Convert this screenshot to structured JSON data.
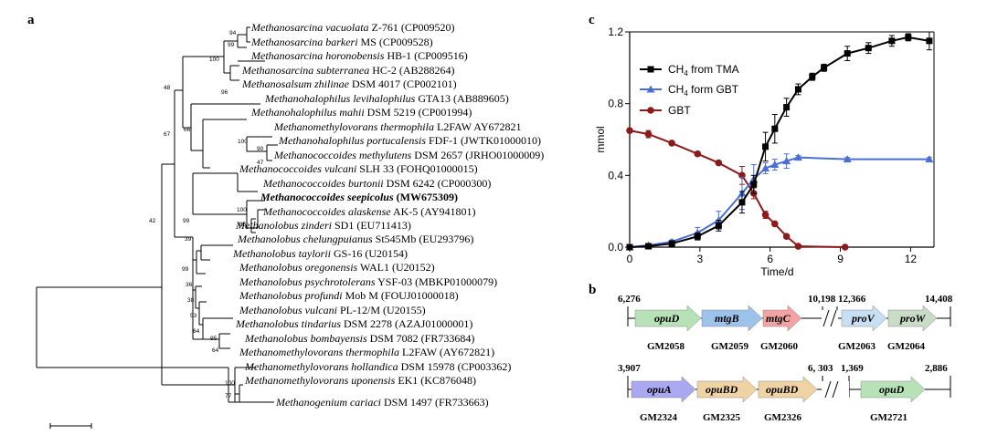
{
  "panels": {
    "a": {
      "label": "a",
      "taxa": [
        {
          "genus": "Methanosarcina",
          "species": "vacuolata",
          "strain": "Z-761 (CP009520)"
        },
        {
          "genus": "Methanosarcina",
          "species": "barkeri",
          "strain": "MS (CP009528)"
        },
        {
          "genus": "Methanosarcina",
          "species": "horonobensis",
          "strain": "HB-1 (CP009516)"
        },
        {
          "genus": "Methanosarcina",
          "species": "subterranea",
          "strain": "HC-2 (AB288264)"
        },
        {
          "genus": "Methanosalsum",
          "species": "zhilinae",
          "strain": "DSM 4017 (CP002101)"
        },
        {
          "genus": "Methanohalophilus",
          "species": "levihalophilus",
          "strain": "GTA13 (AB889605)"
        },
        {
          "genus": "Methanohalophilus",
          "species": "mahii",
          "strain": "DSM 5219 (CP001994)"
        },
        {
          "genus": "Methanomethylovorans",
          "species": "thermophila",
          "strain": "L2FAW AY672821"
        },
        {
          "genus": "Methanohalophilus",
          "species": "portucalensis",
          "strain": "FDF-1 (JWTK01000010)"
        },
        {
          "genus": "Methanococcoides",
          "species": "methylutens",
          "strain": "DSM 2657 (JRHO01000009)"
        },
        {
          "genus": "Methanococcoides",
          "species": "vulcani",
          "strain": "SLH 33 (FOHQ01000015)"
        },
        {
          "genus": "Methanococcoides",
          "species": "burtonii",
          "strain": "DSM 6242 (CP000300)"
        },
        {
          "genus": "Methanococcoides",
          "species": "seepicolus",
          "strain": "(MW675309)",
          "bold": true
        },
        {
          "genus": "Methanococcoides",
          "species": "alaskense",
          "strain": "AK-5 (AY941801)"
        },
        {
          "genus": "Methanolobus",
          "species": "zinderi",
          "strain": "SD1 (EU711413)"
        },
        {
          "genus": "Methanolobus",
          "species": "chelungpuianus",
          "strain": "St545Mb (EU293796)"
        },
        {
          "genus": "Methanolobus",
          "species": "taylorii",
          "strain": "GS-16 (U20154)"
        },
        {
          "genus": "Methanolobus",
          "species": "oregonensis",
          "strain": "WAL1 (U20152)"
        },
        {
          "genus": "Methanolobus",
          "species": "psychrotolerans",
          "strain": "YSF-03 (MBKP01000079)"
        },
        {
          "genus": "Methanolobus",
          "species": "profundi",
          "strain": "Mob M (FOUJ01000018)"
        },
        {
          "genus": "Methanolobus",
          "species": "vulcani",
          "strain": "PL-12/M (U20155)"
        },
        {
          "genus": "Methanolobus",
          "species": "tindarius",
          "strain": "DSM 2278 (AZAJ01000001)"
        },
        {
          "genus": "Methanolobus",
          "species": "bombayensis",
          "strain": "DSM 7082 (FR733684)"
        },
        {
          "genus": "Methanomethylovorans",
          "species": "thermophila",
          "strain": "L2FAW (AY672821)"
        },
        {
          "genus": "Methanomethylovorans",
          "species": "hollandica",
          "strain": "DSM 15978 (CP003362)"
        },
        {
          "genus": "Methanomethylovorans",
          "species": "uponensis",
          "strain": "EK1 (KC876048)"
        },
        {
          "genus": "Methanogenium",
          "species": "cariaci",
          "strain": "DSM 1497 (FR733663)"
        }
      ],
      "bootstrap": [
        "94",
        "99",
        "100",
        "96",
        "48",
        "66",
        "100",
        "90",
        "47",
        "67",
        "99",
        "100",
        "86",
        "42",
        "39",
        "99",
        "36",
        "38",
        "53",
        "64",
        "95",
        "64",
        "100",
        "77"
      ]
    },
    "b": {
      "label": "b",
      "row1": {
        "coords": [
          "6,276",
          "10,198",
          "12,366",
          "14,408"
        ],
        "genes": [
          {
            "name": "opuD",
            "id": "GM2058",
            "color": "#b7e2b7"
          },
          {
            "name": "mtgB",
            "id": "GM2059",
            "color": "#9ec3ea"
          },
          {
            "name": "mtgC",
            "id": "GM2060",
            "color": "#f4a3a3"
          },
          {
            "name": "proV",
            "id": "GM2063",
            "color": "#c7def3"
          },
          {
            "name": "proW",
            "id": "GM2064",
            "color": "#c9dcc6"
          }
        ]
      },
      "row2": {
        "coords": [
          "3,907",
          "6, 303",
          "1,369",
          "2,886"
        ],
        "genes": [
          {
            "name": "opuA",
            "id": "GM2324",
            "color": "#a9a8f0"
          },
          {
            "name": "opuBD",
            "id": "GM2325",
            "color": "#f0d3a4"
          },
          {
            "name": "opuBD",
            "id": "GM2326",
            "color": "#f0d3a4"
          },
          {
            "name": "opuD",
            "id": "GM2721",
            "color": "#b7e2b7"
          }
        ]
      }
    },
    "c": {
      "label": "c"
    }
  },
  "chart_data": {
    "type": "line",
    "title": "",
    "xlabel": "Time/d",
    "ylabel": "mmol",
    "xlim": [
      0,
      13
    ],
    "ylim": [
      0,
      1.2
    ],
    "xticks": [
      "0",
      "3",
      "6",
      "9",
      "12"
    ],
    "yticks": [
      "0.0",
      "0.4",
      "0.8",
      "1.2"
    ],
    "legend_position": "top-left",
    "series": [
      {
        "name": "CH4 from TMA",
        "label_main": "CH",
        "label_sub": "4",
        "label_rest": " from TMA",
        "color": "#000000",
        "marker": "square",
        "x": [
          0,
          0.8,
          1.8,
          2.9,
          3.8,
          4.8,
          5.3,
          5.8,
          6.2,
          6.7,
          7.2,
          7.8,
          8.3,
          9.3,
          10.2,
          11.2,
          11.9,
          12.8
        ],
        "y": [
          0.0,
          0.005,
          0.02,
          0.06,
          0.12,
          0.25,
          0.35,
          0.56,
          0.66,
          0.78,
          0.88,
          0.95,
          1.0,
          1.08,
          1.11,
          1.15,
          1.17,
          1.15
        ],
        "err": [
          0,
          0,
          0.01,
          0.02,
          0.03,
          0.06,
          0.05,
          0.08,
          0.08,
          0.05,
          0.03,
          0.02,
          0.02,
          0.04,
          0.03,
          0.03,
          0.02,
          0.05
        ]
      },
      {
        "name": "CH4 form GBT",
        "label_main": "CH",
        "label_sub": "4",
        "label_rest": " form GBT",
        "color": "#4a6fd1",
        "marker": "triangle",
        "x": [
          0,
          0.8,
          1.8,
          2.9,
          3.8,
          4.8,
          5.3,
          5.8,
          6.2,
          6.7,
          7.2,
          9.3,
          12.8
        ],
        "y": [
          0.0,
          0.01,
          0.03,
          0.08,
          0.15,
          0.3,
          0.38,
          0.44,
          0.46,
          0.48,
          0.5,
          0.49,
          0.49
        ],
        "err": [
          0,
          0,
          0.01,
          0.03,
          0.05,
          0.09,
          0.08,
          0.03,
          0.03,
          0.04,
          0.01,
          0.01,
          0.01
        ]
      },
      {
        "name": "GBT",
        "label_main": "GBT",
        "label_sub": "",
        "label_rest": "",
        "color": "#8b1a1a",
        "marker": "circle",
        "x": [
          0,
          0.8,
          1.8,
          2.9,
          3.8,
          4.8,
          5.3,
          5.8,
          6.2,
          6.7,
          7.2,
          9.2
        ],
        "y": [
          0.65,
          0.63,
          0.58,
          0.52,
          0.47,
          0.4,
          0.3,
          0.18,
          0.13,
          0.06,
          0.005,
          0.0
        ],
        "err": [
          0.01,
          0.02,
          0.01,
          0.01,
          0.01,
          0.05,
          0.03,
          0.02,
          0.01,
          0.01,
          0,
          0
        ]
      }
    ]
  }
}
